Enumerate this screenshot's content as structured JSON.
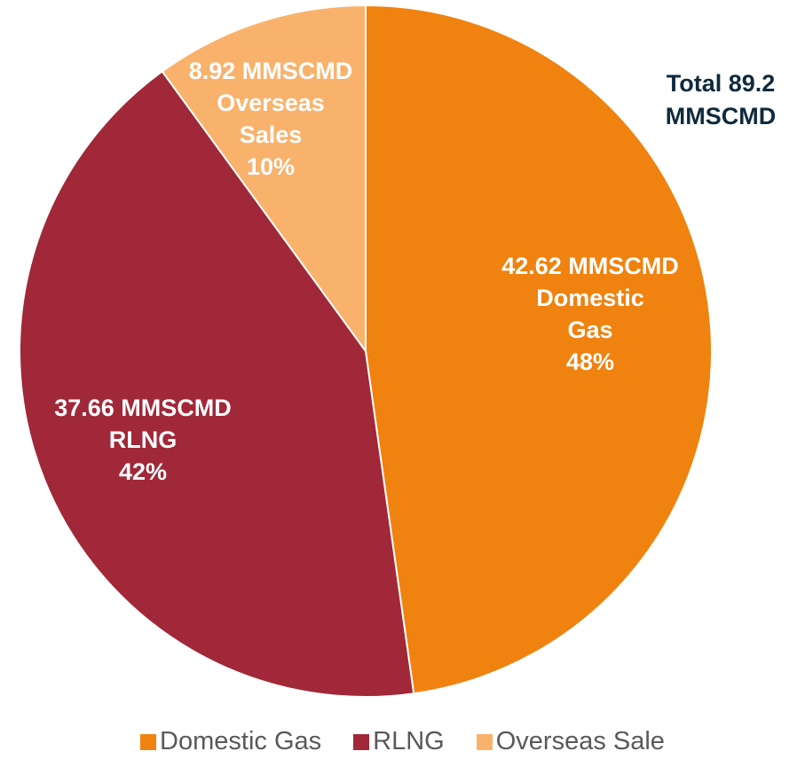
{
  "chart_data": {
    "type": "pie",
    "categories": [
      "Domestic Gas",
      "RLNG",
      "Overseas Sale"
    ],
    "values": [
      42.62,
      37.66,
      8.92
    ],
    "value_labels": [
      "42.62 MMSCMD",
      "37.66 MMSCMD",
      "8.92 MMSCMD"
    ],
    "slice_labels": [
      "Domestic Gas",
      "RLNG",
      "Overseas Sales"
    ],
    "percent_labels": [
      "48%",
      "42%",
      "10%"
    ],
    "colors": [
      "#f0820f",
      "#a02838",
      "#f9b26c"
    ],
    "annotation": "Total 89.2 MMSCMD",
    "legend": "bottom"
  }
}
